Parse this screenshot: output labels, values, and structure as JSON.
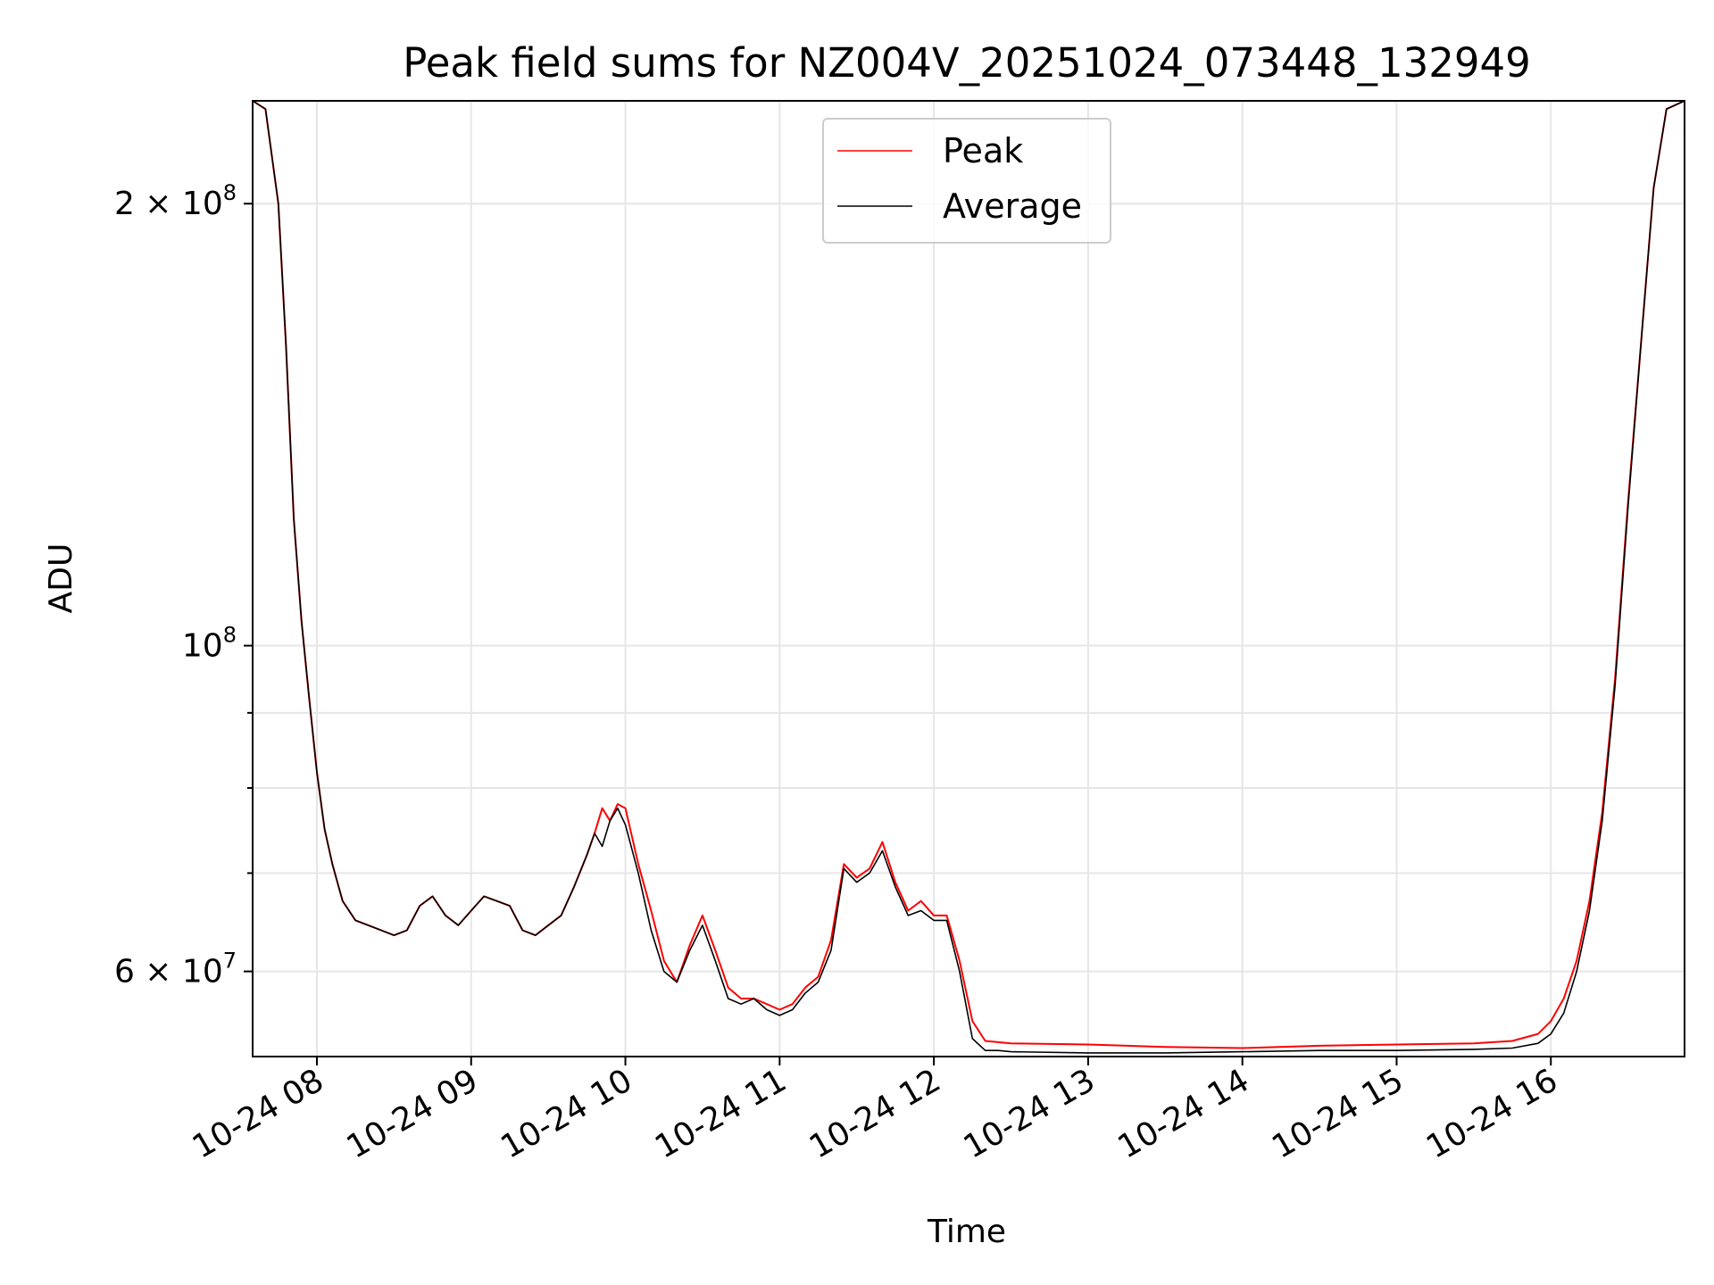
{
  "chart_data": {
    "type": "line",
    "title": "Peak field sums for NZ004V_20251024_073448_132949",
    "xlabel": "Time",
    "ylabel": "ADU",
    "y_scale": "log",
    "xlim": [
      "2025-10-24 07:35",
      "2025-10-24 16:52"
    ],
    "ylim": [
      52500000,
      235000000
    ],
    "grid": true,
    "legend": {
      "placement": "top-center"
    },
    "x_ticks": [
      {
        "value": "2025-10-24 08:00",
        "label": "10-24 08"
      },
      {
        "value": "2025-10-24 09:00",
        "label": "10-24 09"
      },
      {
        "value": "2025-10-24 10:00",
        "label": "10-24 10"
      },
      {
        "value": "2025-10-24 11:00",
        "label": "10-24 11"
      },
      {
        "value": "2025-10-24 12:00",
        "label": "10-24 12"
      },
      {
        "value": "2025-10-24 13:00",
        "label": "10-24 13"
      },
      {
        "value": "2025-10-24 14:00",
        "label": "10-24 14"
      },
      {
        "value": "2025-10-24 15:00",
        "label": "10-24 15"
      },
      {
        "value": "2025-10-24 16:00",
        "label": "10-24 16"
      }
    ],
    "y_ticks": [
      {
        "value": 60000000,
        "base": "6 × 10",
        "exp": "7"
      },
      {
        "value": 100000000,
        "base": "10",
        "exp": "8"
      },
      {
        "value": 200000000,
        "base": "2 × 10",
        "exp": "8"
      }
    ],
    "y_minor_ticks": [
      70000000,
      80000000,
      90000000
    ],
    "x": [
      "2025-10-24 07:35",
      "2025-10-24 07:40",
      "2025-10-24 07:45",
      "2025-10-24 07:48",
      "2025-10-24 07:51",
      "2025-10-24 07:54",
      "2025-10-24 07:57",
      "2025-10-24 08:00",
      "2025-10-24 08:03",
      "2025-10-24 08:06",
      "2025-10-24 08:10",
      "2025-10-24 08:15",
      "2025-10-24 08:20",
      "2025-10-24 08:25",
      "2025-10-24 08:30",
      "2025-10-24 08:35",
      "2025-10-24 08:40",
      "2025-10-24 08:45",
      "2025-10-24 08:50",
      "2025-10-24 08:55",
      "2025-10-24 09:00",
      "2025-10-24 09:05",
      "2025-10-24 09:10",
      "2025-10-24 09:15",
      "2025-10-24 09:20",
      "2025-10-24 09:25",
      "2025-10-24 09:30",
      "2025-10-24 09:35",
      "2025-10-24 09:40",
      "2025-10-24 09:45",
      "2025-10-24 09:48",
      "2025-10-24 09:51",
      "2025-10-24 09:54",
      "2025-10-24 09:57",
      "2025-10-24 10:00",
      "2025-10-24 10:05",
      "2025-10-24 10:10",
      "2025-10-24 10:15",
      "2025-10-24 10:20",
      "2025-10-24 10:25",
      "2025-10-24 10:30",
      "2025-10-24 10:35",
      "2025-10-24 10:40",
      "2025-10-24 10:45",
      "2025-10-24 10:50",
      "2025-10-24 10:55",
      "2025-10-24 11:00",
      "2025-10-24 11:05",
      "2025-10-24 11:10",
      "2025-10-24 11:15",
      "2025-10-24 11:20",
      "2025-10-24 11:25",
      "2025-10-24 11:30",
      "2025-10-24 11:35",
      "2025-10-24 11:40",
      "2025-10-24 11:45",
      "2025-10-24 11:50",
      "2025-10-24 11:55",
      "2025-10-24 12:00",
      "2025-10-24 12:05",
      "2025-10-24 12:10",
      "2025-10-24 12:15",
      "2025-10-24 12:20",
      "2025-10-24 12:25",
      "2025-10-24 12:30",
      "2025-10-24 13:00",
      "2025-10-24 13:30",
      "2025-10-24 14:00",
      "2025-10-24 14:30",
      "2025-10-24 15:00",
      "2025-10-24 15:30",
      "2025-10-24 15:45",
      "2025-10-24 15:55",
      "2025-10-24 16:00",
      "2025-10-24 16:05",
      "2025-10-24 16:10",
      "2025-10-24 16:15",
      "2025-10-24 16:20",
      "2025-10-24 16:25",
      "2025-10-24 16:30",
      "2025-10-24 16:35",
      "2025-10-24 16:40",
      "2025-10-24 16:45",
      "2025-10-24 16:52"
    ],
    "series": [
      {
        "name": "Peak",
        "color": "#ff0000",
        "values": [
          235000000,
          232000000,
          200000000,
          160000000,
          122000000,
          104000000,
          92000000,
          82000000,
          75000000,
          71000000,
          67000000,
          65000000,
          64500000,
          64000000,
          63500000,
          64000000,
          66500000,
          67500000,
          65500000,
          64500000,
          66000000,
          67500000,
          67000000,
          66500000,
          64000000,
          63500000,
          64500000,
          65500000,
          68500000,
          72000000,
          74500000,
          77500000,
          76000000,
          78000000,
          77500000,
          71000000,
          66000000,
          61000000,
          59000000,
          62500000,
          65500000,
          62000000,
          58500000,
          57500000,
          57500000,
          57000000,
          56500000,
          57000000,
          58500000,
          59500000,
          63000000,
          71000000,
          69500000,
          70500000,
          73500000,
          69000000,
          66000000,
          67000000,
          65500000,
          65500000,
          61000000,
          55500000,
          53800000,
          53700000,
          53600000,
          53500000,
          53300000,
          53200000,
          53400000,
          53500000,
          53600000,
          53800000,
          54400000,
          55500000,
          57500000,
          61000000,
          67000000,
          77000000,
          95000000,
          125000000,
          160000000,
          205000000,
          232000000,
          235000000
        ]
      },
      {
        "name": "Average",
        "color": "#000000",
        "values": [
          235000000,
          232000000,
          200000000,
          160000000,
          122000000,
          104000000,
          92000000,
          82000000,
          75000000,
          71000000,
          67000000,
          65000000,
          64500000,
          64000000,
          63500000,
          64000000,
          66500000,
          67500000,
          65500000,
          64500000,
          66000000,
          67500000,
          67000000,
          66500000,
          64000000,
          63500000,
          64500000,
          65500000,
          68500000,
          72000000,
          74500000,
          73000000,
          76000000,
          77500000,
          75500000,
          70000000,
          64000000,
          60000000,
          59000000,
          62000000,
          64500000,
          61000000,
          57500000,
          57000000,
          57500000,
          56500000,
          56000000,
          56500000,
          58000000,
          59000000,
          62000000,
          70500000,
          69000000,
          70000000,
          72500000,
          68500000,
          65500000,
          66000000,
          65000000,
          65000000,
          60000000,
          54000000,
          53000000,
          53000000,
          52900000,
          52800000,
          52800000,
          52900000,
          53000000,
          53000000,
          53100000,
          53200000,
          53600000,
          54400000,
          56200000,
          60000000,
          66000000,
          76000000,
          94000000,
          124000000,
          160000000,
          205000000,
          232000000,
          235000000
        ]
      }
    ]
  }
}
